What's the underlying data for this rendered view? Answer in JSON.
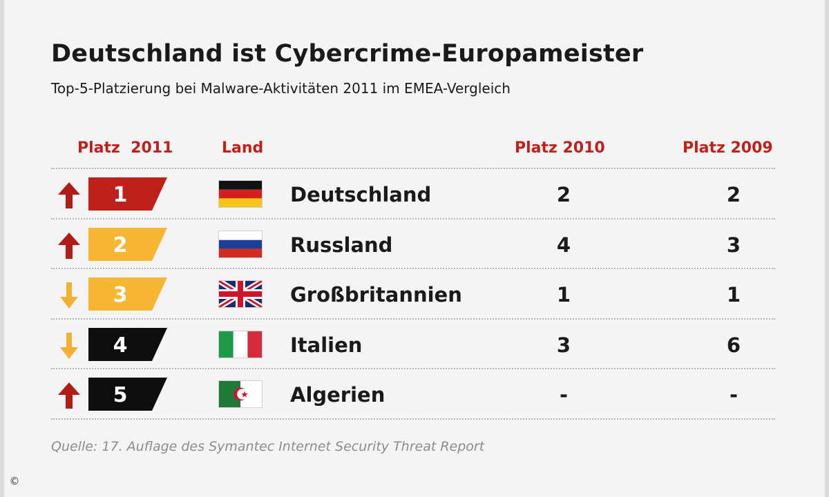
{
  "title": "Deutschland ist Cybercrime-Europameister",
  "subtitle": "Top-5-Platzierung bei Malware-Aktivitäten 2011 im EMEA-Vergleich",
  "headers": {
    "rank": "Platz  2011",
    "country": "Land",
    "y2010": "Platz 2010",
    "y2009": "Platz 2009"
  },
  "source": "Quelle: 17. Auflage des Symantec Internet Security Threat Report",
  "copyright": "©",
  "colors": {
    "accent_red": "#c0201b",
    "badge_yellow": "#f7b633",
    "badge_black": "#0d0d0d",
    "arrow_up": "#b01c17",
    "arrow_down": "#f2b133"
  },
  "chart_data": {
    "type": "table",
    "columns": [
      "Platz  2011",
      "Land",
      "Platz 2010",
      "Platz 2009"
    ],
    "rows": [
      {
        "rank": "1",
        "trend": "up",
        "badge": "red",
        "flag": "de",
        "country": "Deutschland",
        "y2010": "2",
        "y2009": "2"
      },
      {
        "rank": "2",
        "trend": "up",
        "badge": "yellow",
        "flag": "ru",
        "country": "Russland",
        "y2010": "4",
        "y2009": "3"
      },
      {
        "rank": "3",
        "trend": "down",
        "badge": "yellow",
        "flag": "gb",
        "country": "Großbritannien",
        "y2010": "1",
        "y2009": "1"
      },
      {
        "rank": "4",
        "trend": "down",
        "badge": "black",
        "flag": "it",
        "country": "Italien",
        "y2010": "3",
        "y2009": "6"
      },
      {
        "rank": "5",
        "trend": "up",
        "badge": "black",
        "flag": "dz",
        "country": "Algerien",
        "y2010": "-",
        "y2009": "-"
      }
    ]
  }
}
